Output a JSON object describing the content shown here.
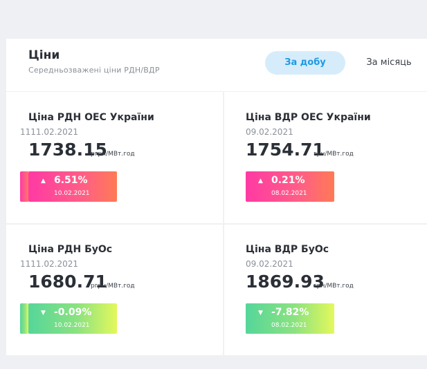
{
  "header": {
    "title": "Ціни",
    "subtitle": "Середньозважені ціни РДН/ВДР",
    "tab_day": "За добу",
    "tab_month": "За місяць"
  },
  "metrics": [
    {
      "title": "Ціна РДН ОЕС України",
      "date": "1111.02.2021",
      "value": "1738.15",
      "unit": "pгрн/МВт.год",
      "change": "6.51%",
      "change_date": "10.02.2021",
      "trend": "up"
    },
    {
      "title": "Ціна ВДР ОЕС України",
      "date": "09.02.2021",
      "value": "1754.71",
      "unit": "грн/МВт.год",
      "change": "0.21%",
      "change_date": "08.02.2021",
      "trend": "up"
    },
    {
      "title": "Ціна РДН БуОс",
      "date": "1111.02.2021",
      "value": "1680.71",
      "unit": "pгрн/МВт.год",
      "change": "-0.09%",
      "change_date": "10.02.2021",
      "trend": "down"
    },
    {
      "title": "Ціна ВДР БуОс",
      "date": "09.02.2021",
      "value": "1869.93",
      "unit": "грн/МВт.год",
      "change": "-7.82%",
      "change_date": "08.02.2021",
      "trend": "down"
    }
  ],
  "icons": {
    "up": "triangle-up-icon",
    "down": "triangle-down-icon"
  },
  "colors": {
    "accent": "#1f9ae4",
    "up_start": "#ff3aa4",
    "up_end": "#ff7a55",
    "down_start": "#55d69a",
    "down_end": "#e3f85c"
  }
}
